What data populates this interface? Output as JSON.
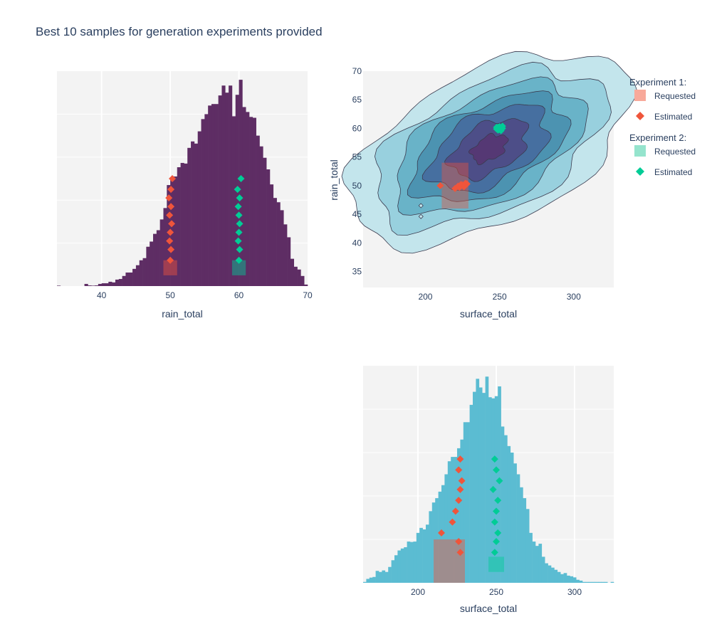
{
  "title": "Best 10 samples for generation experiments provided",
  "legend": {
    "placement": "top-right",
    "groups": [
      {
        "title": "Experiment 1:",
        "requested_label": "Requested",
        "estimated_label": "Estimated",
        "requested_color": "#f8a99a",
        "estimated_color": "#ef553b"
      },
      {
        "title": "Experiment 2:",
        "requested_label": "Requested",
        "estimated_label": "Estimated",
        "requested_color": "#95e4cd",
        "estimated_color": "#00cc96"
      }
    ]
  },
  "colors": {
    "rain_hist": "#5e2d64",
    "surface_hist": "#5bbcd2",
    "plot_bg": "#f3f3f3",
    "exp1": "#ef553b",
    "exp2": "#00cc96",
    "contour_levels": [
      "#c3e5ec",
      "#98d0de",
      "#69b3c8",
      "#4c93b1",
      "#466fa0",
      "#4d4e88",
      "#553874"
    ]
  },
  "chart_data": [
    {
      "type": "bar",
      "name": "rain_hist",
      "xlabel": "rain_total",
      "ylabel": "",
      "xlim": [
        33.5,
        70
      ],
      "xticks": [
        40,
        50,
        60,
        70
      ],
      "ylim": [
        0,
        1
      ],
      "grid": true,
      "bin_width": 0.5,
      "x": [
        33.75,
        34.25,
        34.75,
        35.25,
        35.75,
        36.25,
        36.75,
        37.25,
        37.75,
        38.25,
        38.75,
        39.25,
        39.75,
        40.25,
        40.75,
        41.25,
        41.75,
        42.25,
        42.75,
        43.25,
        43.75,
        44.25,
        44.75,
        45.25,
        45.75,
        46.25,
        46.75,
        47.25,
        47.75,
        48.25,
        48.75,
        49.25,
        49.75,
        50.25,
        50.75,
        51.25,
        51.75,
        52.25,
        52.75,
        53.25,
        53.75,
        54.25,
        54.75,
        55.25,
        55.75,
        56.25,
        56.75,
        57.25,
        57.75,
        58.25,
        58.75,
        59.25,
        59.75,
        60.25,
        60.75,
        61.25,
        61.75,
        62.25,
        62.75,
        63.25,
        63.75,
        64.25,
        64.75,
        65.25,
        65.75,
        66.25,
        66.75,
        67.25,
        67.75,
        68.25,
        68.75,
        69.25,
        69.75
      ],
      "values": [
        0.002,
        0.0,
        0.0,
        0.0,
        0.0,
        0.0,
        0.0,
        0.0,
        0.01,
        0.003,
        0.002,
        0.003,
        0.01,
        0.013,
        0.013,
        0.02,
        0.017,
        0.03,
        0.033,
        0.047,
        0.063,
        0.063,
        0.08,
        0.097,
        0.12,
        0.13,
        0.183,
        0.207,
        0.243,
        0.26,
        0.31,
        0.363,
        0.47,
        0.503,
        0.51,
        0.553,
        0.573,
        0.57,
        0.643,
        0.673,
        0.663,
        0.72,
        0.777,
        0.8,
        0.84,
        0.847,
        0.847,
        0.887,
        0.933,
        0.9,
        0.933,
        0.79,
        0.89,
        0.96,
        0.833,
        0.81,
        0.787,
        0.783,
        0.7,
        0.65,
        0.597,
        0.543,
        0.473,
        0.41,
        0.39,
        0.353,
        0.287,
        0.227,
        0.127,
        0.09,
        0.077,
        0.047,
        0.007
      ],
      "overlays": {
        "exp1_requested": {
          "x": [
            49,
            51
          ],
          "y": [
            0.05,
            0.12
          ]
        },
        "exp2_requested": {
          "x": [
            59,
            61
          ],
          "y": [
            0.05,
            0.12
          ]
        },
        "exp1_estimated": {
          "x": [
            50.3,
            50.1,
            49.8,
            50.1,
            49.9,
            50.2,
            50.0,
            49.9,
            50.1,
            50.0
          ],
          "y": [
            0.5,
            0.45,
            0.41,
            0.37,
            0.33,
            0.29,
            0.25,
            0.21,
            0.17,
            0.12
          ]
        },
        "exp2_estimated": {
          "x": [
            60.3,
            59.8,
            60.1,
            59.9,
            60.0,
            60.1,
            60.0,
            59.9,
            60.1,
            60.0
          ],
          "y": [
            0.5,
            0.45,
            0.41,
            0.37,
            0.33,
            0.29,
            0.25,
            0.21,
            0.17,
            0.12
          ]
        }
      }
    },
    {
      "type": "heatmap",
      "name": "density_contour",
      "xlabel": "surface_total",
      "ylabel": "rain_total",
      "xlim": [
        158,
        327
      ],
      "ylim": [
        32.2,
        70
      ],
      "xticks": [
        200,
        250,
        300
      ],
      "yticks": [
        35,
        40,
        45,
        50,
        55,
        60,
        65,
        70
      ],
      "grid": false,
      "exp1_requested": {
        "x": [
          211,
          229
        ],
        "y": [
          46,
          54
        ]
      },
      "exp1_estimated": {
        "x": [
          210,
          220,
          224,
          226,
          228,
          222,
          225,
          227,
          223,
          226
        ],
        "y": [
          50,
          49.5,
          50.2,
          49.8,
          50.3,
          49.9,
          50.1,
          50.4,
          49.7,
          50
        ]
      },
      "exp2_estimated": {
        "x": [
          248,
          250,
          252,
          249,
          251,
          250,
          248,
          252,
          251,
          249
        ],
        "y": [
          60.2,
          59.8,
          60.4,
          59.7,
          60.1,
          60.3,
          59.9,
          60.0,
          59.6,
          60.2
        ]
      },
      "outliers": [
        {
          "x": 197,
          "y": 46.5
        },
        {
          "x": 197,
          "y": 44.6
        }
      ]
    },
    {
      "type": "bar",
      "name": "surface_hist",
      "xlabel": "surface_total",
      "ylabel": "",
      "xlim": [
        165,
        325
      ],
      "xticks": [
        200,
        250,
        300
      ],
      "ylim": [
        0,
        1
      ],
      "grid": true,
      "bin_width": 2,
      "x": [
        166,
        168,
        170,
        172,
        174,
        176,
        178,
        180,
        182,
        184,
        186,
        188,
        190,
        192,
        194,
        196,
        198,
        200,
        202,
        204,
        206,
        208,
        210,
        212,
        214,
        216,
        218,
        220,
        222,
        224,
        226,
        228,
        230,
        232,
        234,
        236,
        238,
        240,
        242,
        244,
        246,
        248,
        250,
        252,
        254,
        256,
        258,
        260,
        262,
        264,
        266,
        268,
        270,
        272,
        274,
        276,
        278,
        280,
        282,
        284,
        286,
        288,
        290,
        292,
        294,
        296,
        298,
        300,
        302,
        304,
        306,
        308,
        310,
        312,
        314,
        316,
        318,
        320,
        322,
        324
      ],
      "values": [
        0.004,
        0.018,
        0.024,
        0.027,
        0.055,
        0.05,
        0.057,
        0.05,
        0.073,
        0.104,
        0.127,
        0.149,
        0.158,
        0.164,
        0.19,
        0.188,
        0.19,
        0.23,
        0.253,
        0.246,
        0.268,
        0.33,
        0.37,
        0.39,
        0.42,
        0.45,
        0.5,
        0.56,
        0.58,
        0.58,
        0.62,
        0.66,
        0.74,
        0.74,
        0.82,
        0.88,
        0.94,
        0.9,
        0.875,
        0.95,
        0.855,
        0.85,
        0.86,
        0.905,
        0.72,
        0.68,
        0.63,
        0.6,
        0.55,
        0.5,
        0.44,
        0.39,
        0.34,
        0.23,
        0.19,
        0.17,
        0.18,
        0.12,
        0.09,
        0.08,
        0.07,
        0.06,
        0.05,
        0.04,
        0.045,
        0.033,
        0.03,
        0.025,
        0.014,
        0.01,
        0.004,
        0.004,
        0.004,
        0.004,
        0.004,
        0.004,
        0.004,
        0.004,
        0.0,
        0.004
      ],
      "overlays": {
        "exp1_requested": {
          "x": [
            210,
            230
          ],
          "y": [
            0,
            0.2
          ]
        },
        "exp2_requested": {
          "x": [
            245,
            255
          ],
          "y": [
            0.05,
            0.12
          ]
        },
        "exp1_estimated": {
          "x": [
            227,
            226,
            228,
            227,
            226,
            224,
            222,
            215,
            226,
            227
          ],
          "y": [
            0.57,
            0.52,
            0.47,
            0.43,
            0.38,
            0.33,
            0.28,
            0.23,
            0.19,
            0.14
          ]
        },
        "exp2_estimated": {
          "x": [
            249,
            250,
            252,
            248,
            251,
            250,
            249,
            251,
            250,
            249
          ],
          "y": [
            0.57,
            0.52,
            0.47,
            0.43,
            0.38,
            0.33,
            0.28,
            0.23,
            0.19,
            0.14
          ]
        }
      }
    }
  ]
}
